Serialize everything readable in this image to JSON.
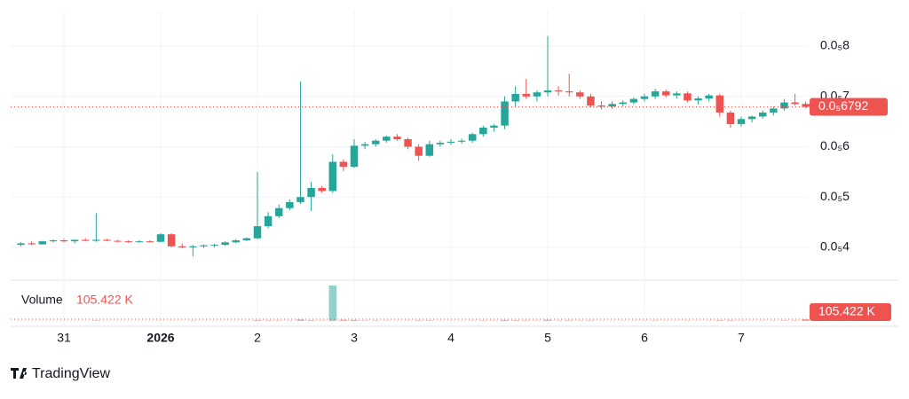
{
  "chart_data": {
    "type": "candlestick",
    "categories": [
      null,
      null,
      null,
      null,
      "31",
      null,
      null,
      null,
      null,
      null,
      null,
      null,
      null,
      "2026",
      null,
      null,
      null,
      null,
      null,
      null,
      null,
      null,
      "2",
      null,
      null,
      null,
      null,
      null,
      null,
      null,
      null,
      "3",
      null,
      null,
      null,
      null,
      null,
      null,
      null,
      null,
      "4",
      null,
      null,
      null,
      null,
      null,
      null,
      null,
      null,
      "5",
      null,
      null,
      null,
      null,
      null,
      null,
      null,
      null,
      "6",
      null,
      null,
      null,
      null,
      null,
      null,
      null,
      null,
      "7",
      null,
      null,
      null,
      null,
      null,
      null
    ],
    "candles": [
      [
        4.05e-06,
        4.1e-06,
        4.02e-06,
        4.08e-06
      ],
      [
        4.08e-06,
        4.12e-06,
        4.04e-06,
        4.06e-06
      ],
      [
        4.06e-06,
        4.13e-06,
        4.05e-06,
        4.12e-06
      ],
      [
        4.12e-06,
        4.16e-06,
        4.1e-06,
        4.14e-06
      ],
      [
        4.14e-06,
        4.17e-06,
        4.1e-06,
        4.12e-06
      ],
      [
        4.12e-06,
        4.16e-06,
        4.08e-06,
        4.15e-06
      ],
      [
        4.15e-06,
        4.18e-06,
        4.12e-06,
        4.13e-06
      ],
      [
        4.13e-06,
        4.68e-06,
        4.11e-06,
        4.15e-06
      ],
      [
        4.15e-06,
        4.17e-06,
        4.12e-06,
        4.13e-06
      ],
      [
        4.13e-06,
        4.15e-06,
        4.1e-06,
        4.12e-06
      ],
      [
        4.12e-06,
        4.14e-06,
        4.09e-06,
        4.11e-06
      ],
      [
        4.11e-06,
        4.14e-06,
        4.09e-06,
        4.12e-06
      ],
      [
        4.12e-06,
        4.14e-06,
        4.1e-06,
        4.11e-06
      ],
      [
        4.11e-06,
        4.28e-06,
        4.1e-06,
        4.26e-06
      ],
      [
        4.26e-06,
        4.28e-06,
        4e-06,
        4.02e-06
      ],
      [
        4.02e-06,
        4.08e-06,
        3.98e-06,
        4e-06
      ],
      [
        4e-06,
        4.05e-06,
        3.82e-06,
        4.02e-06
      ],
      [
        4.02e-06,
        4.06e-06,
        3.99e-06,
        4.04e-06
      ],
      [
        4.04e-06,
        4.07e-06,
        4e-06,
        4.05e-06
      ],
      [
        4.05e-06,
        4.12e-06,
        4.03e-06,
        4.1e-06
      ],
      [
        4.1e-06,
        4.16e-06,
        4.08e-06,
        4.14e-06
      ],
      [
        4.14e-06,
        4.2e-06,
        4.12e-06,
        4.18e-06
      ],
      [
        4.18e-06,
        5.5e-06,
        4.16e-06,
        4.42e-06
      ],
      [
        4.42e-06,
        4.7e-06,
        4.38e-06,
        4.62e-06
      ],
      [
        4.62e-06,
        4.85e-06,
        4.58e-06,
        4.78e-06
      ],
      [
        4.78e-06,
        4.95e-06,
        4.74e-06,
        4.9e-06
      ],
      [
        4.9e-06,
        7.3e-06,
        4.86e-06,
        5e-06
      ],
      [
        5e-06,
        5.3e-06,
        4.72e-06,
        5.18e-06
      ],
      [
        5.18e-06,
        5.22e-06,
        5.08e-06,
        5.12e-06
      ],
      [
        5.12e-06,
        5.85e-06,
        5.08e-06,
        5.7e-06
      ],
      [
        5.7e-06,
        5.75e-06,
        5.52e-06,
        5.6e-06
      ],
      [
        5.6e-06,
        6.15e-06,
        5.58e-06,
        6.02e-06
      ],
      [
        6.02e-06,
        6.1e-06,
        5.95e-06,
        6.05e-06
      ],
      [
        6.05e-06,
        6.15e-06,
        6e-06,
        6.12e-06
      ],
      [
        6.12e-06,
        6.22e-06,
        6.08e-06,
        6.2e-06
      ],
      [
        6.2e-06,
        6.25e-06,
        6.12e-06,
        6.15e-06
      ],
      [
        6.15e-06,
        6.18e-06,
        5.95e-06,
        6e-06
      ],
      [
        6e-06,
        6.05e-06,
        5.72e-06,
        5.82e-06
      ],
      [
        5.82e-06,
        6.12e-06,
        5.8e-06,
        6.05e-06
      ],
      [
        6.05e-06,
        6.12e-06,
        6e-06,
        6.08e-06
      ],
      [
        6.08e-06,
        6.15e-06,
        6.04e-06,
        6.1e-06
      ],
      [
        6.1e-06,
        6.16e-06,
        6.06e-06,
        6.12e-06
      ],
      [
        6.12e-06,
        6.28e-06,
        6.08e-06,
        6.25e-06
      ],
      [
        6.25e-06,
        6.42e-06,
        6.2e-06,
        6.38e-06
      ],
      [
        6.38e-06,
        6.45e-06,
        6.3e-06,
        6.42e-06
      ],
      [
        6.42e-06,
        7e-06,
        6.35e-06,
        6.9e-06
      ],
      [
        6.9e-06,
        7.2e-06,
        6.8e-06,
        7.05e-06
      ],
      [
        7.05e-06,
        7.35e-06,
        6.95e-06,
        7e-06
      ],
      [
        7e-06,
        7.12e-06,
        6.9e-06,
        7.08e-06
      ],
      [
        7.08e-06,
        8.2e-06,
        7e-06,
        7.12e-06
      ],
      [
        7.12e-06,
        7.2e-06,
        7.02e-06,
        7.1e-06
      ],
      [
        7.1e-06,
        7.45e-06,
        7e-06,
        7.08e-06
      ],
      [
        7.08e-06,
        7.12e-06,
        6.95e-06,
        7e-06
      ],
      [
        7e-06,
        7.05e-06,
        6.78e-06,
        6.82e-06
      ],
      [
        6.82e-06,
        6.9e-06,
        6.74e-06,
        6.8e-06
      ],
      [
        6.8e-06,
        6.9e-06,
        6.75e-06,
        6.85e-06
      ],
      [
        6.85e-06,
        6.92e-06,
        6.8e-06,
        6.88e-06
      ],
      [
        6.88e-06,
        6.98e-06,
        6.84e-06,
        6.95e-06
      ],
      [
        6.95e-06,
        7.05e-06,
        6.9e-06,
        7e-06
      ],
      [
        7e-06,
        7.15e-06,
        6.95e-06,
        7.1e-06
      ],
      [
        7.1e-06,
        7.14e-06,
        6.98e-06,
        7.02e-06
      ],
      [
        7.02e-06,
        7.1e-06,
        6.96e-06,
        7.06e-06
      ],
      [
        7.06e-06,
        7.1e-06,
        6.88e-06,
        6.92e-06
      ],
      [
        6.92e-06,
        7e-06,
        6.84e-06,
        6.96e-06
      ],
      [
        6.96e-06,
        7.05e-06,
        6.9e-06,
        7.02e-06
      ],
      [
        7.02e-06,
        7.05e-06,
        6.6e-06,
        6.68e-06
      ],
      [
        6.68e-06,
        6.72e-06,
        6.38e-06,
        6.45e-06
      ],
      [
        6.45e-06,
        6.6e-06,
        6.4e-06,
        6.55e-06
      ],
      [
        6.55e-06,
        6.62e-06,
        6.48e-06,
        6.6e-06
      ],
      [
        6.6e-06,
        6.72e-06,
        6.56e-06,
        6.68e-06
      ],
      [
        6.68e-06,
        6.8e-06,
        6.62e-06,
        6.76e-06
      ],
      [
        6.76e-06,
        6.95e-06,
        6.72e-06,
        6.88e-06
      ],
      [
        6.88e-06,
        7.05e-06,
        6.82e-06,
        6.85e-06
      ],
      [
        6.85e-06,
        6.9e-06,
        6.76e-06,
        6.792e-06
      ]
    ],
    "volumes": [
      9000,
      6000,
      8000,
      7000,
      5000,
      6000,
      5000,
      30000,
      6000,
      5000,
      5000,
      6000,
      5000,
      12000,
      15000,
      9000,
      20000,
      8000,
      7000,
      9000,
      10000,
      12000,
      45000,
      30000,
      25000,
      20000,
      85000,
      40000,
      20000,
      2100000,
      70000,
      60000,
      30000,
      25000,
      20000,
      15000,
      20000,
      35000,
      30000,
      15000,
      12000,
      14000,
      20000,
      25000,
      20000,
      60000,
      40000,
      30000,
      20000,
      70000,
      25000,
      35000,
      20000,
      30000,
      15000,
      12000,
      14000,
      16000,
      18000,
      30000,
      15000,
      14000,
      20000,
      15000,
      16000,
      40000,
      35000,
      20000,
      15000,
      16000,
      18000,
      30000,
      25000,
      105422
    ],
    "up_color": "#26a69a",
    "down_color": "#ef5350",
    "ylim": [
      3.365e-06,
      8.705e-06
    ],
    "yticks": [
      {
        "value": 4e-06,
        "label": "0.0₅4"
      },
      {
        "value": 5e-06,
        "label": "0.0₅5"
      },
      {
        "value": 6e-06,
        "label": "0.0₅6"
      },
      {
        "value": 7e-06,
        "label": "0.0₅7"
      },
      {
        "value": 8e-06,
        "label": "0.0₅8"
      }
    ],
    "grid": true,
    "current_price": {
      "value": 6.792e-06,
      "label": "0.0₅6792"
    },
    "volume_title": "Volume",
    "current_volume": {
      "value": 105422,
      "label": "105.422 K"
    },
    "brand": "TradingView"
  }
}
